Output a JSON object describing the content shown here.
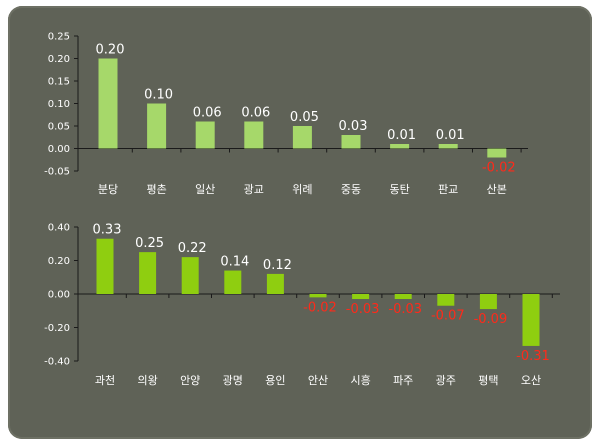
{
  "chart_data": [
    {
      "type": "bar",
      "categories": [
        "분당",
        "평촌",
        "일산",
        "광교",
        "위례",
        "중동",
        "동탄",
        "판교",
        "산본"
      ],
      "values": [
        0.2,
        0.1,
        0.06,
        0.06,
        0.05,
        0.03,
        0.01,
        0.01,
        -0.02
      ],
      "data_labels": [
        "0.20",
        "0.10",
        "0.06",
        "0.06",
        "0.05",
        "0.03",
        "0.01",
        "0.01",
        "-0.02"
      ],
      "yticks": [
        "0.25",
        "0.20",
        "0.15",
        "0.10",
        "0.05",
        "0.00",
        "-0.05"
      ],
      "ylim": [
        -0.05,
        0.25
      ],
      "bar_color": "#a6d86a",
      "negative_label_color": "#ff2a1a",
      "grid": false
    },
    {
      "type": "bar",
      "categories": [
        "과천",
        "의왕",
        "안양",
        "광명",
        "용인",
        "안산",
        "시흥",
        "파주",
        "광주",
        "평택",
        "오산"
      ],
      "values": [
        0.33,
        0.25,
        0.22,
        0.14,
        0.12,
        -0.02,
        -0.03,
        -0.03,
        -0.07,
        -0.09,
        -0.31
      ],
      "data_labels": [
        "0.33",
        "0.25",
        "0.22",
        "0.14",
        "0.12",
        "-0.02",
        "-0.03",
        "-0.03",
        "-0.07",
        "-0.09",
        "-0.31"
      ],
      "yticks": [
        "0.40",
        "0.20",
        "0.00",
        "-0.20",
        "-0.40"
      ],
      "ylim": [
        -0.4,
        0.4
      ],
      "bar_color": "#8fce10",
      "negative_label_color": "#ff2a1a",
      "grid": false
    }
  ]
}
